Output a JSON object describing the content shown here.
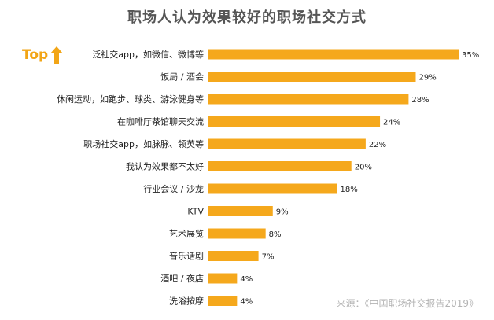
{
  "chart_data": {
    "type": "bar",
    "orientation": "horizontal",
    "title": "职场人认为效果较好的职场社交方式",
    "badge": "Top",
    "source": "来源：《中国职场社交报告2019》",
    "bar_color": "#f5a81c",
    "badge_color": "#f2a516",
    "categories": [
      "泛社交app，如微信、微博等",
      "饭局 / 酒会",
      "休闲运动，如跑步、球类、游泳健身等",
      "在咖啡厅茶馆聊天交流",
      "职场社交app，如脉脉、领英等",
      "我认为效果都不太好",
      "行业会议 / 沙龙",
      "KTV",
      "艺术展览",
      "音乐话剧",
      "酒吧 / 夜店",
      "洗浴按摩"
    ],
    "values": [
      35,
      29,
      28,
      24,
      22,
      20,
      18,
      9,
      8,
      7,
      4,
      4
    ],
    "value_labels": [
      "35%",
      "29%",
      "28%",
      "24%",
      "22%",
      "20%",
      "18%",
      "9%",
      "8%",
      "7%",
      "4%",
      "4%"
    ],
    "unit": "%",
    "xlim": [
      0,
      35
    ]
  }
}
